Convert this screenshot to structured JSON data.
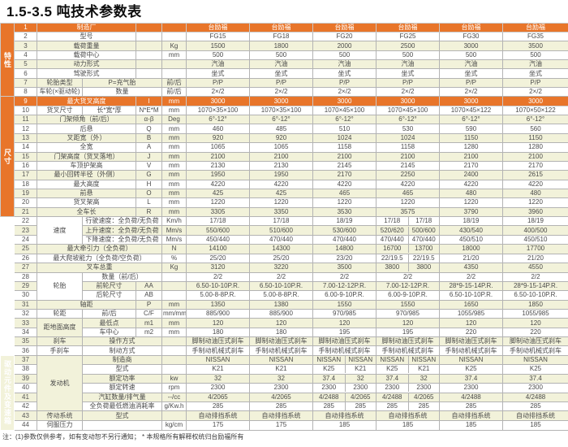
{
  "title": "1.5-3.5 吨技术参数表",
  "note": "注：(1)参数仅供参考，如有变动恕不另行通知；  * 本规格所有解释权统归台励福所有",
  "colors": {
    "orange": "#e8752a",
    "cream": "#f2f2da",
    "border": "#b3b3b3",
    "text": "#4a4a4a"
  },
  "table": {
    "groups": [
      {
        "label": "特性",
        "from": 1,
        "to": 8
      },
      {
        "label": "尺寸",
        "from": 9,
        "to": 21
      },
      {
        "label": "性能",
        "from": 22,
        "to": 27
      },
      {
        "label": "车体",
        "from": 28,
        "to": 36
      },
      {
        "label": "驱动元件及变速箱",
        "from": 37,
        "to": 44
      }
    ],
    "rows": [
      {
        "n": 1,
        "hdr": true,
        "cells": [
          {
            "t": "制造厂",
            "c": 2
          },
          {
            "t": "",
            "c": 1
          },
          {
            "t": "",
            "c": 1
          }
        ],
        "v": [
          "台励福",
          "台励福",
          "台励福",
          "台励福",
          "台励福",
          "台励福"
        ]
      },
      {
        "n": 2,
        "cells": [
          {
            "t": "型号",
            "c": 2
          },
          {
            "t": "",
            "c": 1
          },
          {
            "t": "",
            "c": 1
          }
        ],
        "v": [
          "FG15",
          "FG18",
          "FG20",
          "FG25",
          "FG30",
          "FG35"
        ]
      },
      {
        "n": 3,
        "cells": [
          {
            "t": "载荷重量",
            "c": 2
          },
          {
            "t": "",
            "c": 1
          },
          {
            "t": "Kg",
            "c": 1
          }
        ],
        "v": [
          "1500",
          "1800",
          "2000",
          "2500",
          "3000",
          "3500"
        ]
      },
      {
        "n": 4,
        "cells": [
          {
            "t": "载荷中心",
            "c": 2
          },
          {
            "t": "",
            "c": 1
          },
          {
            "t": "mm",
            "c": 1
          }
        ],
        "v": [
          "500",
          "500",
          "500",
          "500",
          "500",
          "500"
        ]
      },
      {
        "n": 5,
        "cells": [
          {
            "t": "动力形式",
            "c": 2
          },
          {
            "t": "",
            "c": 1
          },
          {
            "t": "",
            "c": 1
          }
        ],
        "v": [
          "汽油",
          "汽油",
          "汽油",
          "汽油",
          "汽油",
          "汽油"
        ]
      },
      {
        "n": 6,
        "cells": [
          {
            "t": "驾驶形式",
            "c": 2
          },
          {
            "t": "",
            "c": 1
          },
          {
            "t": "",
            "c": 1
          }
        ],
        "v": [
          "坐式",
          "坐式",
          "坐式",
          "坐式",
          "坐式",
          "坐式"
        ]
      },
      {
        "n": 7,
        "cells": [
          {
            "t": "轮胎类型",
            "c": 1
          },
          {
            "t": "P=充气胎",
            "c": 2
          },
          {
            "t": "前/后",
            "c": 1
          }
        ],
        "v": [
          "P/P",
          "P/P",
          "P/P",
          "P/P",
          "P/P",
          "P/P"
        ]
      },
      {
        "n": 8,
        "cells": [
          {
            "t": "车轮(×驱动轮)",
            "c": 1
          },
          {
            "t": "数量",
            "c": 2
          },
          {
            "t": "前/后",
            "c": 1
          }
        ],
        "v": [
          "2×/2",
          "2×/2",
          "2×/2",
          "2×/2",
          "2×/2",
          "2×/2"
        ]
      },
      {
        "n": 9,
        "hdr": true,
        "cells": [
          {
            "t": "最大货叉高度",
            "c": 2
          },
          {
            "t": "l",
            "c": 1
          },
          {
            "t": "mm",
            "c": 1
          }
        ],
        "v": [
          "3000",
          "3000",
          "3000",
          "3000",
          "3000",
          "3000"
        ]
      },
      {
        "n": 10,
        "cells": [
          {
            "t": "货叉尺寸",
            "c": 1
          },
          {
            "t": "长*宽*厚",
            "c": 1
          },
          {
            "t": "N*E*M",
            "c": 1
          },
          {
            "t": "mm",
            "c": 1
          }
        ],
        "v": [
          "1070×35×100",
          "1070×35×100",
          "1070×45×100",
          "1070×45×100",
          "1070×45×122",
          "1070×50×122"
        ]
      },
      {
        "n": 11,
        "cells": [
          {
            "t": "门架倾角（前/后）",
            "c": 2
          },
          {
            "t": "α-β",
            "c": 1
          },
          {
            "t": "Deg",
            "c": 1
          }
        ],
        "v": [
          "6°-12°",
          "6°-12°",
          "6°-12°",
          "6°-12°",
          "6°-12°",
          "6°-12°"
        ]
      },
      {
        "n": 12,
        "cells": [
          {
            "t": "后悬",
            "c": 2
          },
          {
            "t": "Q",
            "c": 1
          },
          {
            "t": "mm",
            "c": 1
          }
        ],
        "v": [
          "460",
          "485",
          "510",
          "530",
          "590",
          "560"
        ]
      },
      {
        "n": 13,
        "cells": [
          {
            "t": "叉距宽（外）",
            "c": 2
          },
          {
            "t": "B",
            "c": 1
          },
          {
            "t": "mm",
            "c": 1
          }
        ],
        "v": [
          "920",
          "920",
          "1024",
          "1024",
          "1150",
          "1150"
        ]
      },
      {
        "n": 14,
        "cells": [
          {
            "t": "全宽",
            "c": 2
          },
          {
            "t": "A",
            "c": 1
          },
          {
            "t": "mm",
            "c": 1
          }
        ],
        "v": [
          "1065",
          "1065",
          "1158",
          "1158",
          "1280",
          "1280"
        ]
      },
      {
        "n": 15,
        "cells": [
          {
            "t": "门架高度（货叉落地）",
            "c": 2
          },
          {
            "t": "J",
            "c": 1
          },
          {
            "t": "mm",
            "c": 1
          }
        ],
        "v": [
          "2100",
          "2100",
          "2100",
          "2100",
          "2100",
          "2100"
        ]
      },
      {
        "n": 16,
        "cells": [
          {
            "t": "车顶护架高",
            "c": 2
          },
          {
            "t": "V",
            "c": 1
          },
          {
            "t": "mm",
            "c": 1
          }
        ],
        "v": [
          "2130",
          "2130",
          "2145",
          "2145",
          "2170",
          "2170"
        ]
      },
      {
        "n": 17,
        "cells": [
          {
            "t": "最小回转半径（外侧）",
            "c": 2
          },
          {
            "t": "G",
            "c": 1
          },
          {
            "t": "mm",
            "c": 1
          }
        ],
        "v": [
          "1950",
          "1950",
          "2170",
          "2250",
          "2400",
          "2615"
        ]
      },
      {
        "n": 18,
        "cells": [
          {
            "t": "最大高度",
            "c": 2
          },
          {
            "t": "H",
            "c": 1
          },
          {
            "t": "mm",
            "c": 1
          }
        ],
        "v": [
          "4220",
          "4220",
          "4220",
          "4220",
          "4220",
          "4220"
        ]
      },
      {
        "n": 19,
        "cells": [
          {
            "t": "前悬",
            "c": 2
          },
          {
            "t": "O",
            "c": 1
          },
          {
            "t": "mm",
            "c": 1
          }
        ],
        "v": [
          "425",
          "425",
          "465",
          "465",
          "480",
          "480"
        ]
      },
      {
        "n": 20,
        "cells": [
          {
            "t": "货叉架高",
            "c": 2
          },
          {
            "t": "L",
            "c": 1
          },
          {
            "t": "mm",
            "c": 1
          }
        ],
        "v": [
          "1220",
          "1220",
          "1220",
          "1220",
          "1220",
          "1220"
        ]
      },
      {
        "n": 21,
        "cells": [
          {
            "t": "全车长",
            "c": 2
          },
          {
            "t": "R",
            "c": 1
          },
          {
            "t": "mm",
            "c": 1
          }
        ],
        "v": [
          "3305",
          "3350",
          "3530",
          "3575",
          "3790",
          "3960"
        ]
      },
      {
        "n": 22,
        "cells": [
          {
            "t": "速度",
            "c": 1,
            "r": 3
          },
          {
            "t": "行驶速度：全负荷/无负荷",
            "c": 2
          },
          {
            "t": "Km/h",
            "c": 1
          }
        ],
        "v": [
          "17/18",
          "17/18",
          "18/19",
          [
            "17/18",
            "17/18"
          ],
          "18/19",
          "18/19"
        ]
      },
      {
        "n": 23,
        "cells": [
          {
            "t": "上升速度：全负荷/无负荷",
            "c": 2
          },
          {
            "t": "Mm/s",
            "c": 1
          }
        ],
        "v": [
          "550/600",
          "510/600",
          "530/600",
          [
            "520/620",
            "500/600"
          ],
          "430/540",
          "400/500"
        ]
      },
      {
        "n": 24,
        "cells": [
          {
            "t": "下降速度：全负荷/无负荷",
            "c": 2
          },
          {
            "t": "Mm/s",
            "c": 1
          }
        ],
        "v": [
          "450/440",
          "470/440",
          "470/440",
          [
            "470/440",
            "470/440"
          ],
          "450/510",
          "450/510"
        ]
      },
      {
        "n": 25,
        "cells": [
          {
            "t": "最大牵引力（全负荷）",
            "c": 3
          },
          {
            "t": "N",
            "c": 1
          }
        ],
        "v": [
          "14100",
          "14300",
          "14800",
          [
            "16700",
            "13700"
          ],
          "18000",
          "17700"
        ]
      },
      {
        "n": 26,
        "cells": [
          {
            "t": "最大爬坡能力（全负荷/空负荷）",
            "c": 3
          },
          {
            "t": "%",
            "c": 1
          }
        ],
        "v": [
          "25/20",
          "25/20",
          "23/20",
          [
            "22/19.5",
            "22/19.5"
          ],
          "21/20",
          "21/20"
        ]
      },
      {
        "n": 27,
        "cells": [
          {
            "t": "叉车总重",
            "c": 3
          },
          {
            "t": "Kg",
            "c": 1
          }
        ],
        "v": [
          "3120",
          "3220",
          "3500",
          [
            "3800",
            "3800"
          ],
          "4350",
          "4550"
        ]
      },
      {
        "n": 28,
        "cells": [
          {
            "t": "轮胎",
            "c": 1,
            "r": 3
          },
          {
            "t": "数量（前/后）",
            "c": 2
          },
          {
            "t": "",
            "c": 1
          }
        ],
        "v": [
          "2/2",
          "2/2",
          "2/2",
          "2/2",
          "2/2",
          "2/2"
        ]
      },
      {
        "n": 29,
        "cells": [
          {
            "t": "前轮尺寸",
            "c": 1
          },
          {
            "t": "AA",
            "c": 1
          },
          {
            "t": "",
            "c": 1
          }
        ],
        "v": [
          "6.50-10-10P.R.",
          "6.50-10-10P.R.",
          "7.00-12-12P.R.",
          "7.00-12-12P.R.",
          "28*9-15-14P.R.",
          "28*9-15-14P.R."
        ]
      },
      {
        "n": 30,
        "cells": [
          {
            "t": "后轮尺寸",
            "c": 1
          },
          {
            "t": "AB",
            "c": 1
          },
          {
            "t": "",
            "c": 1
          }
        ],
        "v": [
          "5.00-8-8P.R.",
          "5.00-8-8P.R.",
          "6.00-9-10P.R.",
          "6.00-9-10P.R.",
          "6.50-10-10P.R.",
          "6.50-10-10P.R."
        ]
      },
      {
        "n": 31,
        "cells": [
          {
            "t": "轴距",
            "c": 2
          },
          {
            "t": "P",
            "c": 1
          },
          {
            "t": "mm",
            "c": 1
          }
        ],
        "v": [
          "1350",
          "1380",
          "1550",
          "1550",
          "1650",
          "1850"
        ]
      },
      {
        "n": 32,
        "cells": [
          {
            "t": "轮距",
            "c": 1
          },
          {
            "t": "前/后",
            "c": 1
          },
          {
            "t": "C/F",
            "c": 1
          },
          {
            "t": "mm/mm",
            "c": 1
          }
        ],
        "v": [
          "885/900",
          "885/900",
          "970/985",
          "970/985",
          "1055/985",
          "1055/985"
        ]
      },
      {
        "n": 33,
        "cells": [
          {
            "t": "距地面高度",
            "c": 1,
            "r": 2
          },
          {
            "t": "最低点",
            "c": 1
          },
          {
            "t": "m1",
            "c": 1
          },
          {
            "t": "mm",
            "c": 1
          }
        ],
        "v": [
          "120",
          "120",
          "120",
          "120",
          "120",
          "120"
        ]
      },
      {
        "n": 34,
        "cells": [
          {
            "t": "车中心",
            "c": 1
          },
          {
            "t": "m2",
            "c": 1
          },
          {
            "t": "mm",
            "c": 1
          }
        ],
        "v": [
          "180",
          "180",
          "195",
          "195",
          "220",
          "220"
        ]
      },
      {
        "n": 35,
        "cells": [
          {
            "t": "刹车",
            "c": 1
          },
          {
            "t": "操作方式",
            "c": 2
          },
          {
            "t": "",
            "c": 1
          }
        ],
        "v": [
          "脚制动油压式刹车",
          "脚制动油压式刹车",
          "脚制动油压式刹车",
          "脚制动油压式刹车",
          "脚制动油压式刹车",
          "脚制动油压式刹车"
        ]
      },
      {
        "n": 36,
        "cells": [
          {
            "t": "手刹车",
            "c": 1
          },
          {
            "t": "制动方式",
            "c": 2
          },
          {
            "t": "",
            "c": 1
          }
        ],
        "v": [
          "手制动机械式刹车",
          "手制动机械式刹车",
          "手制动机械式刹车",
          "手制动机械式刹车",
          "手制动机械式刹车",
          "手制动机械式刹车"
        ]
      },
      {
        "n": 37,
        "cells": [
          {
            "t": "发动机",
            "c": 1,
            "r": 6
          },
          {
            "t": "制造商",
            "c": 2
          },
          {
            "t": "",
            "c": 1
          }
        ],
        "v": [
          "NISSAN",
          "NISSAN",
          [
            "NISSAN",
            "NISSAN"
          ],
          [
            "NISSAN",
            "NISSAN"
          ],
          "NISSAN",
          "NISSAN"
        ]
      },
      {
        "n": 38,
        "cells": [
          {
            "t": "型式",
            "c": 2
          },
          {
            "t": "",
            "c": 1
          }
        ],
        "v": [
          "K21",
          "K21",
          [
            "K25",
            "K21"
          ],
          [
            "K25",
            "K21"
          ],
          "K25",
          "K25"
        ]
      },
      {
        "n": 39,
        "cells": [
          {
            "t": "额定功率",
            "c": 2
          },
          {
            "t": "kw",
            "c": 1
          }
        ],
        "v": [
          "32",
          "32",
          [
            "37.4",
            "32"
          ],
          [
            "37.4",
            "32"
          ],
          "37.4",
          "37.4"
        ]
      },
      {
        "n": 40,
        "cells": [
          {
            "t": "额定转速",
            "c": 2
          },
          {
            "t": "rpm",
            "c": 1
          }
        ],
        "v": [
          "2300",
          "2300",
          [
            "2300",
            "2300"
          ],
          [
            "2300",
            "2300"
          ],
          "2300",
          "2300"
        ]
      },
      {
        "n": 41,
        "cells": [
          {
            "t": "汽缸数量/排气量",
            "c": 2
          },
          {
            "t": "--/cc",
            "c": 1
          }
        ],
        "v": [
          "4/2065",
          "4/2065",
          [
            "4/2488",
            "4/2065"
          ],
          [
            "4/2488",
            "4/2065"
          ],
          "4/2488",
          "4/2488"
        ]
      },
      {
        "n": 42,
        "cells": [
          {
            "t": "全负荷最低燃油消耗率",
            "c": 2
          },
          {
            "t": "g/Kw.h",
            "c": 1
          }
        ],
        "v": [
          "285",
          "285",
          [
            "285",
            "285"
          ],
          [
            "285",
            "285"
          ],
          "285",
          "285"
        ]
      },
      {
        "n": 43,
        "cells": [
          {
            "t": "传动系统",
            "c": 1
          },
          {
            "t": "型式",
            "c": 2
          },
          {
            "t": "",
            "c": 1
          }
        ],
        "v": [
          "自动排挡系统",
          "自动排挡系统",
          "自动排挡系统",
          "自动排挡系统",
          "自动排挡系统",
          "自动排挡系统"
        ]
      },
      {
        "n": 44,
        "cells": [
          {
            "t": "伺服压力",
            "c": 1
          },
          {
            "t": "",
            "c": 2
          },
          {
            "t": "kg/cm",
            "c": 1
          }
        ],
        "v": [
          "175",
          "175",
          "185",
          "185",
          "185",
          "185"
        ]
      }
    ]
  }
}
